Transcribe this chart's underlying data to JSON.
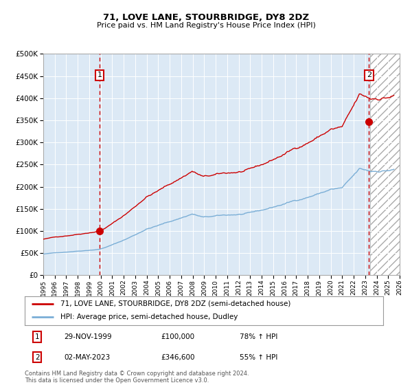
{
  "title": "71, LOVE LANE, STOURBRIDGE, DY8 2DZ",
  "subtitle": "Price paid vs. HM Land Registry's House Price Index (HPI)",
  "legend_line1": "71, LOVE LANE, STOURBRIDGE, DY8 2DZ (semi-detached house)",
  "legend_line2": "HPI: Average price, semi-detached house, Dudley",
  "annotation1_date": "29-NOV-1999",
  "annotation1_price": "£100,000",
  "annotation1_hpi": "78% ↑ HPI",
  "annotation2_date": "02-MAY-2023",
  "annotation2_price": "£346,600",
  "annotation2_hpi": "55% ↑ HPI",
  "footer": "Contains HM Land Registry data © Crown copyright and database right 2024.\nThis data is licensed under the Open Government Licence v3.0.",
  "plot_color_red": "#cc0000",
  "plot_color_blue": "#7aaed6",
  "bg_color": "#dce9f5",
  "dashed_line_color": "#cc0000",
  "marker_color": "#cc0000",
  "x_start_year": 1995,
  "x_end_year": 2026,
  "y_min": 0,
  "y_max": 500000,
  "sale1_year": 1999.91,
  "sale1_price": 100000,
  "sale2_year": 2023.33,
  "sale2_price": 346600
}
